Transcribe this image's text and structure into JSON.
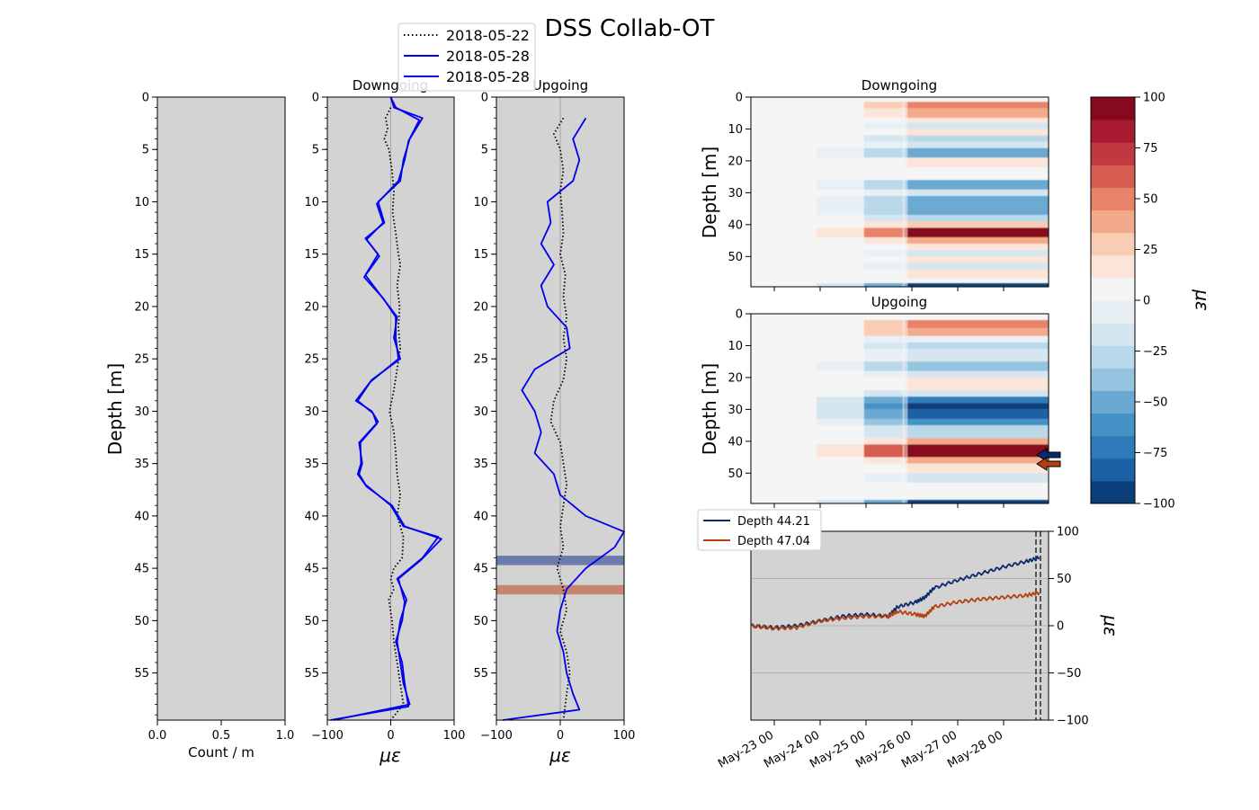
{
  "figure": {
    "title": "DSS Collab-OT"
  },
  "legend_top": [
    {
      "label": "2018-05-22",
      "color": "#000000",
      "dash": "dotted"
    },
    {
      "label": "2018-05-28",
      "color": "#0000ee",
      "dash": "solid"
    },
    {
      "label": "2018-05-28",
      "color": "#0000ee",
      "dash": "solid"
    }
  ],
  "legend_ts": [
    {
      "label": "Depth 44.21",
      "color": "#0b2a6e"
    },
    {
      "label": "Depth 47.04",
      "color": "#b5400f"
    }
  ],
  "colorbar": {
    "label": "με",
    "ticks": [
      "100",
      "75",
      "50",
      "25",
      "0",
      "−25",
      "−50",
      "−75",
      "−100"
    ],
    "levels": [
      "#0b3f7a",
      "#1b61a6",
      "#2d7bb8",
      "#4592c6",
      "#6aa9d2",
      "#94c4df",
      "#b9d8ea",
      "#d5e6f1",
      "#e8f0f5",
      "#f5f5f5",
      "#fbe5d9",
      "#f9ccb4",
      "#f3aa8a",
      "#e8836a",
      "#d65d4f",
      "#c23840",
      "#a81a30",
      "#87091f"
    ]
  },
  "chart_data": [
    {
      "id": "count",
      "type": "line",
      "title": "",
      "xlabel": "Count / m",
      "ylabel": "Depth [m]",
      "xlim": [
        0.0,
        1.0
      ],
      "ylim": [
        59.5,
        0
      ],
      "xticks": [
        "0.0",
        "0.5",
        "1.0"
      ],
      "yticks": [
        "0",
        "5",
        "10",
        "15",
        "20",
        "25",
        "30",
        "35",
        "40",
        "45",
        "50",
        "55"
      ],
      "background": "#d3d3d3",
      "series": []
    },
    {
      "id": "down-profile",
      "type": "line",
      "title": "Downgoing",
      "xlabel": "με",
      "xlim": [
        -100,
        100
      ],
      "ylim": [
        59.5,
        0
      ],
      "xticks": [
        "−100",
        "0",
        "100"
      ],
      "yticks": [
        "0",
        "5",
        "10",
        "15",
        "20",
        "25",
        "30",
        "35",
        "40",
        "45",
        "50",
        "55"
      ],
      "background": "#d3d3d3",
      "series": [
        {
          "label": "2018-05-22",
          "color": "#000000",
          "dash": "dotted",
          "points": [
            [
              0,
              1
            ],
            [
              -8,
              2
            ],
            [
              -5,
              3
            ],
            [
              -10,
              4
            ],
            [
              -3,
              5
            ],
            [
              2,
              7
            ],
            [
              5,
              9
            ],
            [
              3,
              11
            ],
            [
              8,
              13
            ],
            [
              12,
              15
            ],
            [
              15,
              16
            ],
            [
              10,
              18
            ],
            [
              14,
              20
            ],
            [
              12,
              22
            ],
            [
              15,
              24
            ],
            [
              10,
              26
            ],
            [
              5,
              28
            ],
            [
              -2,
              30
            ],
            [
              5,
              32
            ],
            [
              8,
              34
            ],
            [
              10,
              36
            ],
            [
              15,
              38
            ],
            [
              10,
              40
            ],
            [
              20,
              42
            ],
            [
              18,
              44
            ],
            [
              5,
              45
            ],
            [
              0,
              46
            ],
            [
              5,
              47
            ],
            [
              -3,
              48
            ],
            [
              2,
              50
            ],
            [
              5,
              52
            ],
            [
              10,
              54
            ],
            [
              15,
              56
            ],
            [
              20,
              58
            ],
            [
              0,
              59.5
            ]
          ]
        },
        {
          "label": "2018-05-28",
          "color": "#0000ee",
          "dash": "solid",
          "points": [
            [
              0,
              0
            ],
            [
              5,
              1
            ],
            [
              50,
              2
            ],
            [
              30,
              4
            ],
            [
              20,
              6
            ],
            [
              15,
              8
            ],
            [
              -20,
              10
            ],
            [
              -10,
              12
            ],
            [
              -40,
              13.5
            ],
            [
              -20,
              15
            ],
            [
              -40,
              17
            ],
            [
              -15,
              19
            ],
            [
              10,
              21
            ],
            [
              5,
              23
            ],
            [
              15,
              25
            ],
            [
              -30,
              27
            ],
            [
              -55,
              29
            ],
            [
              -30,
              30
            ],
            [
              -20,
              31
            ],
            [
              -50,
              33
            ],
            [
              -45,
              35
            ],
            [
              -50,
              36
            ],
            [
              -40,
              37
            ],
            [
              0,
              39
            ],
            [
              20,
              41
            ],
            [
              75,
              42
            ],
            [
              50,
              44
            ],
            [
              10,
              46
            ],
            [
              25,
              48
            ],
            [
              15,
              50
            ],
            [
              10,
              52
            ],
            [
              15,
              54
            ],
            [
              20,
              56
            ],
            [
              30,
              58
            ],
            [
              -90,
              59.5
            ]
          ]
        },
        {
          "label": "2018-05-28",
          "color": "#0000ee",
          "dash": "solid",
          "points": [
            [
              0,
              0
            ],
            [
              8,
              1
            ],
            [
              45,
              2.2
            ],
            [
              28,
              4.2
            ],
            [
              22,
              6
            ],
            [
              12,
              8
            ],
            [
              -22,
              10.2
            ],
            [
              -12,
              12
            ],
            [
              -38,
              13.6
            ],
            [
              -18,
              15.2
            ],
            [
              -42,
              17.2
            ],
            [
              -12,
              19.2
            ],
            [
              8,
              21
            ],
            [
              8,
              23
            ],
            [
              12,
              25
            ],
            [
              -32,
              27.2
            ],
            [
              -52,
              29
            ],
            [
              -28,
              30.2
            ],
            [
              -22,
              31.2
            ],
            [
              -48,
              33
            ],
            [
              -47,
              35
            ],
            [
              -52,
              36
            ],
            [
              -38,
              37.2
            ],
            [
              2,
              39
            ],
            [
              22,
              41
            ],
            [
              80,
              42.2
            ],
            [
              48,
              44.2
            ],
            [
              12,
              46
            ],
            [
              22,
              48.2
            ],
            [
              18,
              50
            ],
            [
              8,
              52
            ],
            [
              18,
              54
            ],
            [
              22,
              56
            ],
            [
              28,
              58.2
            ],
            [
              -95,
              59.5
            ]
          ]
        }
      ]
    },
    {
      "id": "up-profile",
      "type": "line",
      "title": "Upgoing",
      "xlabel": "με",
      "xlim": [
        -100,
        100
      ],
      "ylim": [
        59.5,
        0
      ],
      "xticks": [
        "−100",
        "0",
        "100"
      ],
      "yticks": [
        "0",
        "5",
        "10",
        "15",
        "20",
        "25",
        "30",
        "35",
        "40",
        "45",
        "50",
        "55"
      ],
      "background": "#d3d3d3",
      "bands": [
        {
          "from": 43.8,
          "to": 44.7,
          "color": "#5a6aa5"
        },
        {
          "from": 46.6,
          "to": 47.5,
          "color": "#c2785e"
        }
      ],
      "series": [
        {
          "label": "2018-05-22",
          "color": "#000000",
          "dash": "dotted",
          "points": [
            [
              5,
              2
            ],
            [
              -10,
              3.5
            ],
            [
              0,
              5
            ],
            [
              5,
              7
            ],
            [
              0,
              9
            ],
            [
              3,
              11
            ],
            [
              5,
              13
            ],
            [
              0,
              15
            ],
            [
              8,
              17
            ],
            [
              5,
              19
            ],
            [
              10,
              21
            ],
            [
              5,
              23
            ],
            [
              10,
              25
            ],
            [
              5,
              27
            ],
            [
              -10,
              29
            ],
            [
              -15,
              31
            ],
            [
              0,
              33
            ],
            [
              5,
              35
            ],
            [
              10,
              37
            ],
            [
              5,
              39
            ],
            [
              0,
              41
            ],
            [
              5,
              43
            ],
            [
              -5,
              45
            ],
            [
              5,
              47
            ],
            [
              10,
              49
            ],
            [
              0,
              51
            ],
            [
              10,
              53
            ],
            [
              15,
              55
            ],
            [
              10,
              57
            ],
            [
              5,
              59.5
            ]
          ]
        },
        {
          "label": "2018-05-28",
          "color": "#0000ee",
          "dash": "solid",
          "points": [
            [
              40,
              2
            ],
            [
              20,
              4
            ],
            [
              30,
              6
            ],
            [
              20,
              8
            ],
            [
              -20,
              10
            ],
            [
              -15,
              12
            ],
            [
              -30,
              14
            ],
            [
              -10,
              16
            ],
            [
              -30,
              18
            ],
            [
              -20,
              20
            ],
            [
              10,
              22
            ],
            [
              15,
              24
            ],
            [
              -40,
              26
            ],
            [
              -60,
              28
            ],
            [
              -40,
              30
            ],
            [
              -30,
              32
            ],
            [
              -40,
              34
            ],
            [
              -10,
              36
            ],
            [
              0,
              38
            ],
            [
              40,
              40
            ],
            [
              100,
              41.5
            ],
            [
              85,
              43
            ],
            [
              40,
              45
            ],
            [
              10,
              47
            ],
            [
              0,
              49
            ],
            [
              -5,
              51
            ],
            [
              5,
              53
            ],
            [
              10,
              55
            ],
            [
              20,
              57
            ],
            [
              30,
              58.5
            ],
            [
              -90,
              59.5
            ]
          ]
        }
      ]
    },
    {
      "id": "down-heatmap",
      "type": "heatmap",
      "title": "Downgoing",
      "ylabel": "Depth [m]",
      "ylim": [
        59.5,
        0
      ],
      "yticks": [
        "0",
        "10",
        "20",
        "30",
        "40",
        "50"
      ],
      "value_range": [
        -100,
        100
      ]
    },
    {
      "id": "up-heatmap",
      "type": "heatmap",
      "title": "Upgoing",
      "ylabel": "Depth [m]",
      "ylim": [
        59.5,
        0
      ],
      "yticks": [
        "0",
        "10",
        "20",
        "30",
        "40",
        "50"
      ],
      "value_range": [
        -100,
        100
      ]
    },
    {
      "id": "timeseries",
      "type": "line",
      "ylabel": "με",
      "ylim": [
        -100,
        100
      ],
      "yticks": [
        "100",
        "50",
        "0",
        "−50",
        "−100"
      ],
      "xticks": [
        "May-23 00",
        "May-24 00",
        "May-25 00",
        "May-26 00",
        "May-27 00",
        "May-28 00"
      ],
      "background": "#d3d3d3",
      "grid": true,
      "series": [
        {
          "label": "Depth 44.21",
          "color": "#0b2a6e",
          "points": [
            [
              0,
              0
            ],
            [
              0.5,
              -2
            ],
            [
              1,
              0
            ],
            [
              1.5,
              5
            ],
            [
              2,
              10
            ],
            [
              2.5,
              12
            ],
            [
              3,
              10
            ],
            [
              3.2,
              20
            ],
            [
              3.6,
              25
            ],
            [
              3.8,
              30
            ],
            [
              4,
              40
            ],
            [
              4.5,
              48
            ],
            [
              5,
              55
            ],
            [
              5.5,
              62
            ],
            [
              6,
              68
            ],
            [
              6.3,
              72
            ]
          ]
        },
        {
          "label": "Depth 47.04",
          "color": "#b5400f",
          "points": [
            [
              0,
              0
            ],
            [
              0.5,
              -3
            ],
            [
              1,
              -2
            ],
            [
              1.5,
              5
            ],
            [
              2,
              8
            ],
            [
              2.5,
              10
            ],
            [
              3,
              10
            ],
            [
              3.2,
              15
            ],
            [
              3.6,
              12
            ],
            [
              3.8,
              10
            ],
            [
              4,
              20
            ],
            [
              4.5,
              25
            ],
            [
              5,
              28
            ],
            [
              5.5,
              30
            ],
            [
              6,
              32
            ],
            [
              6.3,
              35
            ]
          ]
        }
      ]
    }
  ]
}
